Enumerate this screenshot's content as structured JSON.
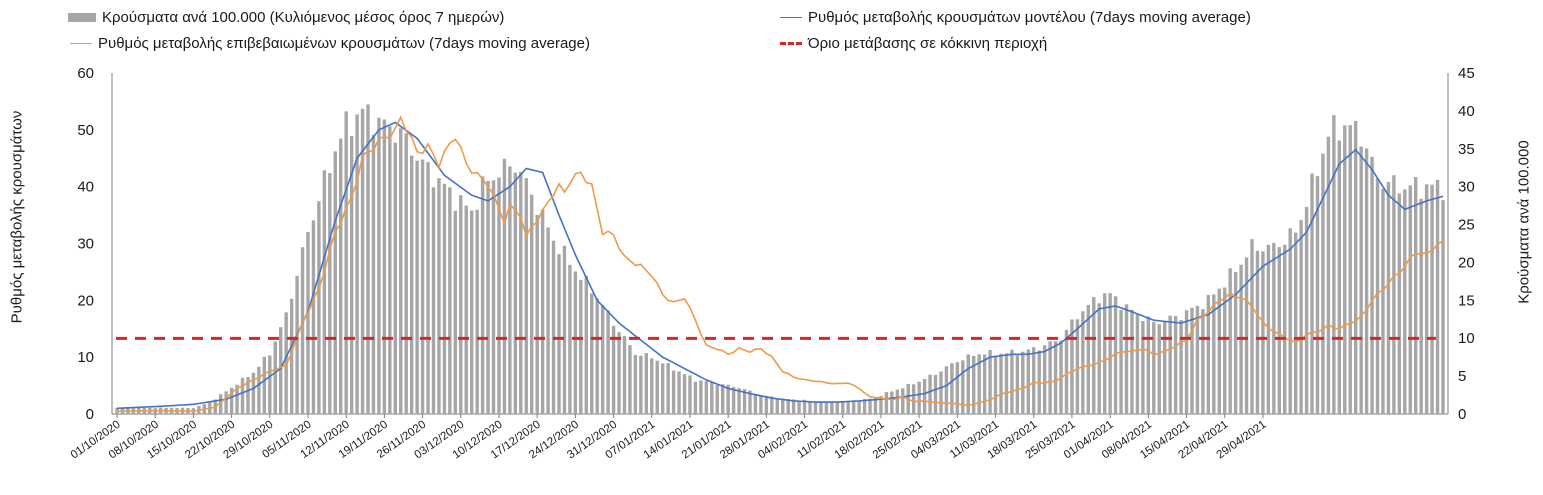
{
  "chart_data": {
    "type": "bar+line",
    "title": "",
    "x_tick_labels": [
      "01/10/2020",
      "08/10/2020",
      "15/10/2020",
      "22/10/2020",
      "29/10/2020",
      "05/11/2020",
      "12/11/2020",
      "19/11/2020",
      "26/11/2020",
      "03/12/2020",
      "10/12/2020",
      "17/12/2020",
      "24/12/2020",
      "31/12/2020",
      "07/01/2021",
      "14/01/2021",
      "21/01/2021",
      "28/01/2021",
      "04/02/2021",
      "11/02/2021",
      "18/02/2021",
      "25/02/2021",
      "04/03/2021",
      "11/03/2021",
      "18/03/2021",
      "25/03/2021",
      "01/04/2021",
      "08/04/2021",
      "15/04/2021",
      "22/04/2021",
      "29/04/2021"
    ],
    "ylabel_left": "Ρυθμός μεταβολής κρουσμάτων",
    "ylabel_right": "Κρούσματα ανά 100.000",
    "ylim_left": [
      0,
      60
    ],
    "ylim_right": [
      0,
      45
    ],
    "yticks_left": [
      "0",
      "10",
      "20",
      "30",
      "40",
      "50",
      "60"
    ],
    "yticks_right": [
      "0",
      "5",
      "10",
      "15",
      "20",
      "25",
      "30",
      "35",
      "40",
      "45"
    ],
    "legend": {
      "bars": "Κρούσματα ανά 100.000 (Κυλιόμενος μέσος όρος 7 ημερών)",
      "model": "Ρυθμός μεταβολής κρουσμάτων μοντέλου (7days moving average)",
      "confirmed": "Ρυθμός μεταβολής επιβεβαιωμένων κρουσμάτων (7days moving average)",
      "threshold": "Όριο μετάβασης σε κόκκινη περιοχή"
    },
    "series": [
      {
        "name": "Κρούσματα ανά 100.000 (Κυλιόμενος μέσος όρος 7 ημερών)",
        "axis": "right",
        "kind": "bar",
        "color": "#a6a6a6",
        "anchors": [
          [
            0,
            0.8
          ],
          [
            7,
            0.8
          ],
          [
            14,
            0.8
          ],
          [
            17,
            1.5
          ],
          [
            21,
            3.5
          ],
          [
            25,
            5.5
          ],
          [
            28,
            8
          ],
          [
            31,
            13
          ],
          [
            35,
            24
          ],
          [
            40,
            35
          ],
          [
            42,
            38
          ],
          [
            45,
            40
          ],
          [
            48,
            38.5
          ],
          [
            52,
            37
          ],
          [
            56,
            33
          ],
          [
            60,
            30
          ],
          [
            62,
            28.5
          ],
          [
            65,
            26.7
          ],
          [
            67,
            30
          ],
          [
            70,
            32
          ],
          [
            73,
            33
          ],
          [
            76,
            29
          ],
          [
            80,
            23
          ],
          [
            84,
            19
          ],
          [
            88,
            15.5
          ],
          [
            91,
            12
          ],
          [
            95,
            8
          ],
          [
            98,
            7.5
          ],
          [
            102,
            6
          ],
          [
            106,
            4.5
          ],
          [
            110,
            4
          ],
          [
            114,
            3.5
          ],
          [
            118,
            2.5
          ],
          [
            122,
            2
          ],
          [
            126,
            1.8
          ],
          [
            130,
            1.5
          ],
          [
            134,
            1.7
          ],
          [
            138,
            2
          ],
          [
            142,
            3
          ],
          [
            146,
            4
          ],
          [
            150,
            5.3
          ],
          [
            154,
            7
          ],
          [
            158,
            8
          ],
          [
            162,
            8
          ],
          [
            166,
            8.2
          ],
          [
            170,
            9
          ],
          [
            173,
            10
          ],
          [
            176,
            13
          ],
          [
            180,
            15.5
          ],
          [
            182,
            15.8
          ],
          [
            185,
            14
          ],
          [
            190,
            12
          ],
          [
            195,
            13
          ],
          [
            200,
            15
          ],
          [
            205,
            19
          ],
          [
            208,
            22
          ],
          [
            212,
            22
          ],
          [
            216,
            24
          ],
          [
            219,
            30
          ],
          [
            222,
            37
          ],
          [
            225,
            38.2
          ],
          [
            228,
            37
          ],
          [
            231,
            31
          ],
          [
            235,
            30
          ],
          [
            240,
            30
          ],
          [
            243,
            30
          ]
        ]
      },
      {
        "name": "Ρυθμός μεταβολής κρουσμάτων μοντέλου (7days moving average)",
        "axis": "left",
        "kind": "line",
        "color": "#4472c4",
        "anchors": [
          [
            0,
            1
          ],
          [
            7,
            1.3
          ],
          [
            14,
            1.7
          ],
          [
            20,
            2.6
          ],
          [
            25,
            4.5
          ],
          [
            30,
            8
          ],
          [
            35,
            18
          ],
          [
            40,
            34
          ],
          [
            44,
            45
          ],
          [
            48,
            50
          ],
          [
            51,
            51.3
          ],
          [
            55,
            48.5
          ],
          [
            60,
            42
          ],
          [
            65,
            38.5
          ],
          [
            68,
            37.5
          ],
          [
            72,
            40
          ],
          [
            75,
            43.2
          ],
          [
            78,
            42.5
          ],
          [
            81,
            35
          ],
          [
            84,
            28
          ],
          [
            88,
            20
          ],
          [
            92,
            16
          ],
          [
            96,
            13
          ],
          [
            100,
            10
          ],
          [
            104,
            8
          ],
          [
            108,
            6
          ],
          [
            112,
            4.5
          ],
          [
            116,
            3.6
          ],
          [
            120,
            2.8
          ],
          [
            124,
            2.3
          ],
          [
            128,
            2.1
          ],
          [
            132,
            2.1
          ],
          [
            136,
            2.3
          ],
          [
            140,
            2.6
          ],
          [
            144,
            3
          ],
          [
            148,
            3.6
          ],
          [
            152,
            5
          ],
          [
            156,
            8
          ],
          [
            160,
            10
          ],
          [
            164,
            10.5
          ],
          [
            167,
            10.5
          ],
          [
            170,
            11
          ],
          [
            173,
            12.5
          ],
          [
            176,
            15
          ],
          [
            180,
            18.5
          ],
          [
            183,
            19
          ],
          [
            186,
            18
          ],
          [
            190,
            16.5
          ],
          [
            195,
            16
          ],
          [
            200,
            17.5
          ],
          [
            205,
            21
          ],
          [
            210,
            26
          ],
          [
            215,
            29
          ],
          [
            218,
            32
          ],
          [
            221,
            38
          ],
          [
            224,
            44
          ],
          [
            227,
            46.5
          ],
          [
            230,
            43
          ],
          [
            233,
            38.5
          ],
          [
            236,
            36
          ],
          [
            240,
            37.5
          ],
          [
            243,
            38.3
          ]
        ]
      },
      {
        "name": "Ρυθμός μεταβολής επιβεβαιωμένων κρουσμάτων (7days moving average)",
        "axis": "left",
        "kind": "line",
        "color": "#ed9a4a",
        "anchors": [
          [
            0,
            0.5
          ],
          [
            7,
            0.6
          ],
          [
            14,
            0.5
          ],
          [
            18,
            1.2
          ],
          [
            22,
            4.5
          ],
          [
            25,
            6
          ],
          [
            28,
            7.5
          ],
          [
            31,
            8.5
          ],
          [
            34,
            16
          ],
          [
            37,
            22
          ],
          [
            40,
            32
          ],
          [
            43,
            38
          ],
          [
            45,
            45
          ],
          [
            48,
            48
          ],
          [
            51,
            49.8
          ],
          [
            52,
            52
          ],
          [
            53,
            50.5
          ],
          [
            55,
            46
          ],
          [
            57,
            47
          ],
          [
            59,
            44
          ],
          [
            61,
            47.5
          ],
          [
            62,
            49
          ],
          [
            64,
            44
          ],
          [
            66,
            42
          ],
          [
            68,
            40.5
          ],
          [
            70,
            36
          ],
          [
            71,
            34
          ],
          [
            72,
            36.5
          ],
          [
            74,
            35
          ],
          [
            75,
            31
          ],
          [
            76,
            33
          ],
          [
            78,
            35.5
          ],
          [
            80,
            39
          ],
          [
            81,
            40
          ],
          [
            82,
            39
          ],
          [
            83,
            41
          ],
          [
            85,
            42.5
          ],
          [
            87,
            40
          ],
          [
            89,
            32
          ],
          [
            91,
            31.5
          ],
          [
            93,
            27.5
          ],
          [
            95,
            26.5
          ],
          [
            96,
            26
          ],
          [
            98,
            24.5
          ],
          [
            100,
            21
          ],
          [
            102,
            19.5
          ],
          [
            104,
            20.5
          ],
          [
            106,
            16.5
          ],
          [
            108,
            12
          ],
          [
            110,
            11.5
          ],
          [
            112,
            10.5
          ],
          [
            114,
            11.5
          ],
          [
            116,
            11
          ],
          [
            118,
            11.5
          ],
          [
            120,
            10
          ],
          [
            122,
            7.5
          ],
          [
            124,
            6.5
          ],
          [
            126,
            6
          ],
          [
            128,
            5.8
          ],
          [
            130,
            5.5
          ],
          [
            132,
            5.3
          ],
          [
            134,
            5.5
          ],
          [
            136,
            4.5
          ],
          [
            138,
            3
          ],
          [
            140,
            2.8
          ],
          [
            142,
            2.5
          ],
          [
            144,
            3
          ],
          [
            146,
            2.2
          ],
          [
            148,
            2.3
          ],
          [
            150,
            2
          ],
          [
            152,
            1.9
          ],
          [
            154,
            1.8
          ],
          [
            156,
            1.5
          ],
          [
            158,
            2
          ],
          [
            160,
            2.5
          ],
          [
            162,
            3.5
          ],
          [
            164,
            4
          ],
          [
            166,
            4.5
          ],
          [
            168,
            5.5
          ],
          [
            170,
            5.5
          ],
          [
            172,
            5.8
          ],
          [
            174,
            7
          ],
          [
            176,
            8
          ],
          [
            178,
            8.5
          ],
          [
            180,
            9
          ],
          [
            182,
            10
          ],
          [
            184,
            11
          ],
          [
            186,
            11
          ],
          [
            188,
            11.5
          ],
          [
            190,
            10.5
          ],
          [
            192,
            11
          ],
          [
            194,
            12
          ],
          [
            196,
            13
          ],
          [
            198,
            16.5
          ],
          [
            200,
            18
          ],
          [
            202,
            20
          ],
          [
            204,
            21
          ],
          [
            206,
            20.5
          ],
          [
            208,
            19
          ],
          [
            210,
            16
          ],
          [
            212,
            14.5
          ],
          [
            214,
            13.5
          ],
          [
            216,
            12.5
          ],
          [
            218,
            14
          ],
          [
            220,
            14.5
          ],
          [
            222,
            15.5
          ],
          [
            224,
            15
          ],
          [
            226,
            16
          ],
          [
            228,
            17
          ],
          [
            230,
            20
          ],
          [
            232,
            22
          ],
          [
            234,
            24
          ],
          [
            236,
            26
          ],
          [
            238,
            28.5
          ],
          [
            240,
            28
          ],
          [
            242,
            30
          ],
          [
            243,
            30
          ]
        ]
      },
      {
        "name": "Όριο μετάβασης σε κόκκινη περιοχή",
        "axis": "left",
        "kind": "line",
        "color": "#d62728",
        "style": "dashed",
        "value": 13.3
      }
    ]
  }
}
